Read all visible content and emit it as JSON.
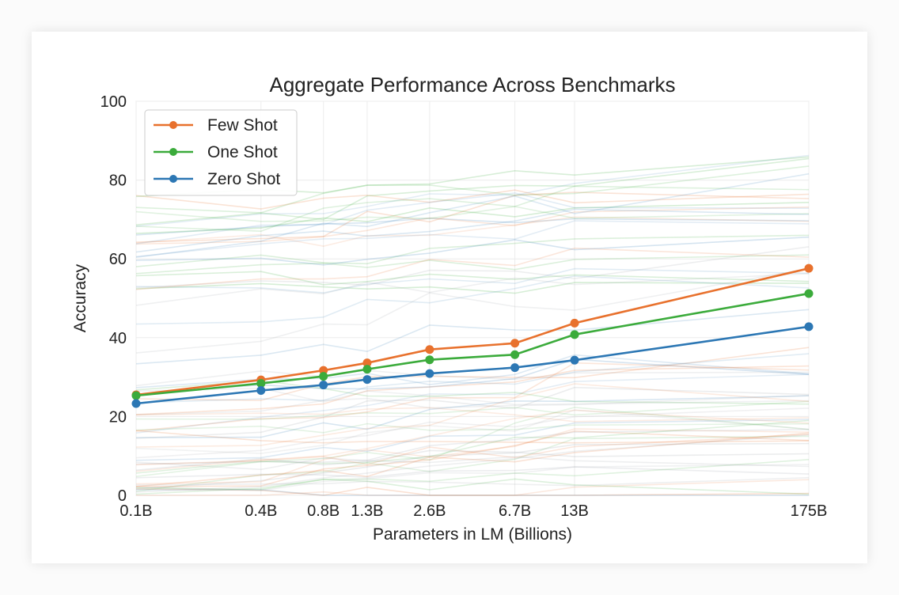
{
  "chart_data": {
    "type": "line",
    "title": "Aggregate Performance Across Benchmarks",
    "xlabel": "Parameters in LM (Billions)",
    "ylabel": "Accuracy",
    "x_scale": "log",
    "x": [
      0.1,
      0.4,
      0.8,
      1.3,
      2.6,
      6.7,
      13,
      175
    ],
    "x_tick_labels": [
      "0.1B",
      "0.4B",
      "0.8B",
      "1.3B",
      "2.6B",
      "6.7B",
      "13B",
      "175B"
    ],
    "ylim": [
      0,
      100
    ],
    "y_ticks": [
      0,
      20,
      40,
      60,
      80,
      100
    ],
    "grid": true,
    "legend_position": "top-left",
    "series": [
      {
        "name": "Few Shot",
        "color": "#e8712d",
        "values": [
          25.5,
          29.3,
          31.7,
          33.6,
          37.0,
          38.6,
          43.7,
          57.6
        ]
      },
      {
        "name": "One Shot",
        "color": "#3bab3b",
        "values": [
          25.3,
          28.4,
          30.2,
          32.0,
          34.4,
          35.7,
          40.8,
          51.2
        ]
      },
      {
        "name": "Zero Shot",
        "color": "#2c77b4",
        "values": [
          23.3,
          26.6,
          28.0,
          29.4,
          30.9,
          32.4,
          34.3,
          42.8
        ]
      }
    ]
  }
}
